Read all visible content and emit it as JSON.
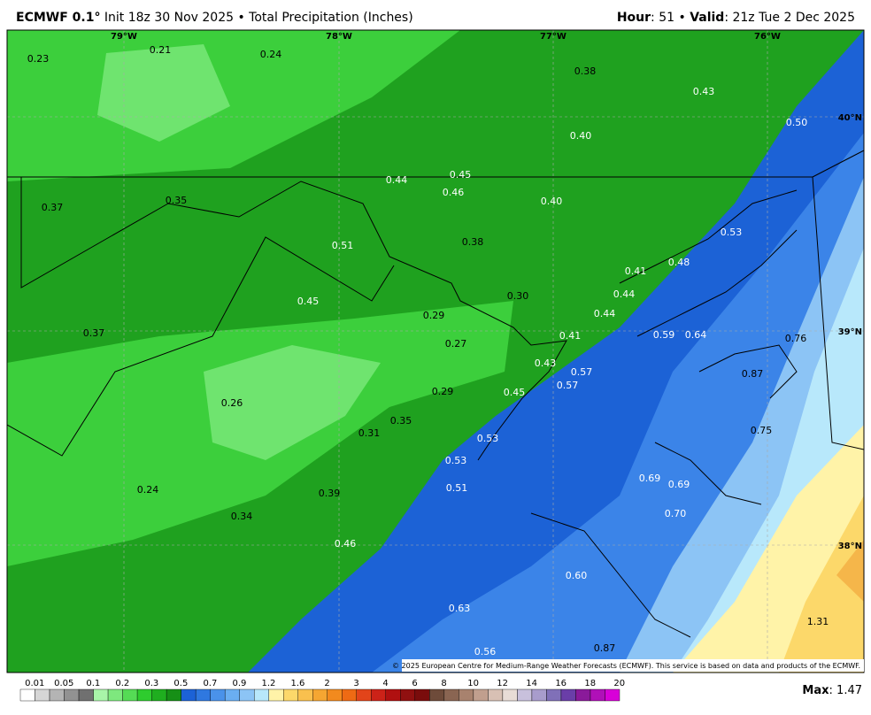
{
  "header": {
    "model": "ECMWF 0.1°",
    "info": " Init 18z 30 Nov 2025 • Total Precipitation (Inches)",
    "hour_key": "Hour",
    "hour_value": ": 51 • ",
    "valid_key": "Valid",
    "valid_value": ": 21z Tue 2 Dec 2025"
  },
  "map": {
    "values": [
      "0.23",
      "0.21",
      "0.24",
      "0.38",
      "0.43",
      "0.40",
      "0.50",
      "0.44",
      "0.45",
      "0.46",
      "0.40",
      "0.37",
      "0.35",
      "0.51",
      "0.38",
      "0.53",
      "0.41",
      "0.48",
      "0.44",
      "0.30",
      "0.45",
      "0.29",
      "0.44",
      "0.37",
      "0.27",
      "0.41",
      "0.59",
      "0.64",
      "0.76",
      "0.43",
      "0.57",
      "0.57",
      "0.87",
      "0.29",
      "0.45",
      "0.26",
      "0.35",
      "0.31",
      "0.75",
      "0.53",
      "0.53",
      "0.69",
      "0.69",
      "0.24",
      "0.51",
      "0.39",
      "0.34",
      "0.70",
      "0.46",
      "0.60",
      "0.63",
      "1.31",
      "0.56",
      "0.87"
    ],
    "lon_labels": [
      "79°W",
      "78°W",
      "77°W",
      "76°W"
    ],
    "lat_labels": [
      "40°N",
      "39°N",
      "38°N"
    ],
    "credit": "© 2025 European Centre for Medium-Range Weather Forecasts (ECMWF). This service is based on data and products of the ECMWF."
  },
  "colorbar": {
    "labels": [
      "0.01",
      "0.05",
      "0.1",
      "0.2",
      "0.3",
      "0.5",
      "0.7",
      "0.9",
      "1.2",
      "1.6",
      "2",
      "3",
      "4",
      "6",
      "8",
      "10",
      "12",
      "14",
      "16",
      "18",
      "20"
    ],
    "colors": [
      "#ffffff",
      "#d6d6d6",
      "#b4b4b4",
      "#929292",
      "#707070",
      "#a8f5a8",
      "#7ee87e",
      "#55db55",
      "#2ecc2e",
      "#1fae1f",
      "#168f16",
      "#1c62d6",
      "#2f78e0",
      "#4a92ea",
      "#6aaef2",
      "#8cc4f5",
      "#b8e8fb",
      "#fff3a8",
      "#fcd86a",
      "#f9c04e",
      "#f5a632",
      "#f28a1e",
      "#ee6a14",
      "#e2441a",
      "#cc2218",
      "#b01010",
      "#901010",
      "#7a0c0c",
      "#6e4b3a",
      "#8a6552",
      "#a8826e",
      "#c19f8e",
      "#d8c0b4",
      "#e8dcd6",
      "#c8c0dc",
      "#a89ccc",
      "#8070b8",
      "#6a3ea8",
      "#8a1a9a",
      "#b010b8",
      "#d800d8"
    ]
  },
  "footer": {
    "max_key": "Max",
    "max_value": ": 1.47"
  }
}
